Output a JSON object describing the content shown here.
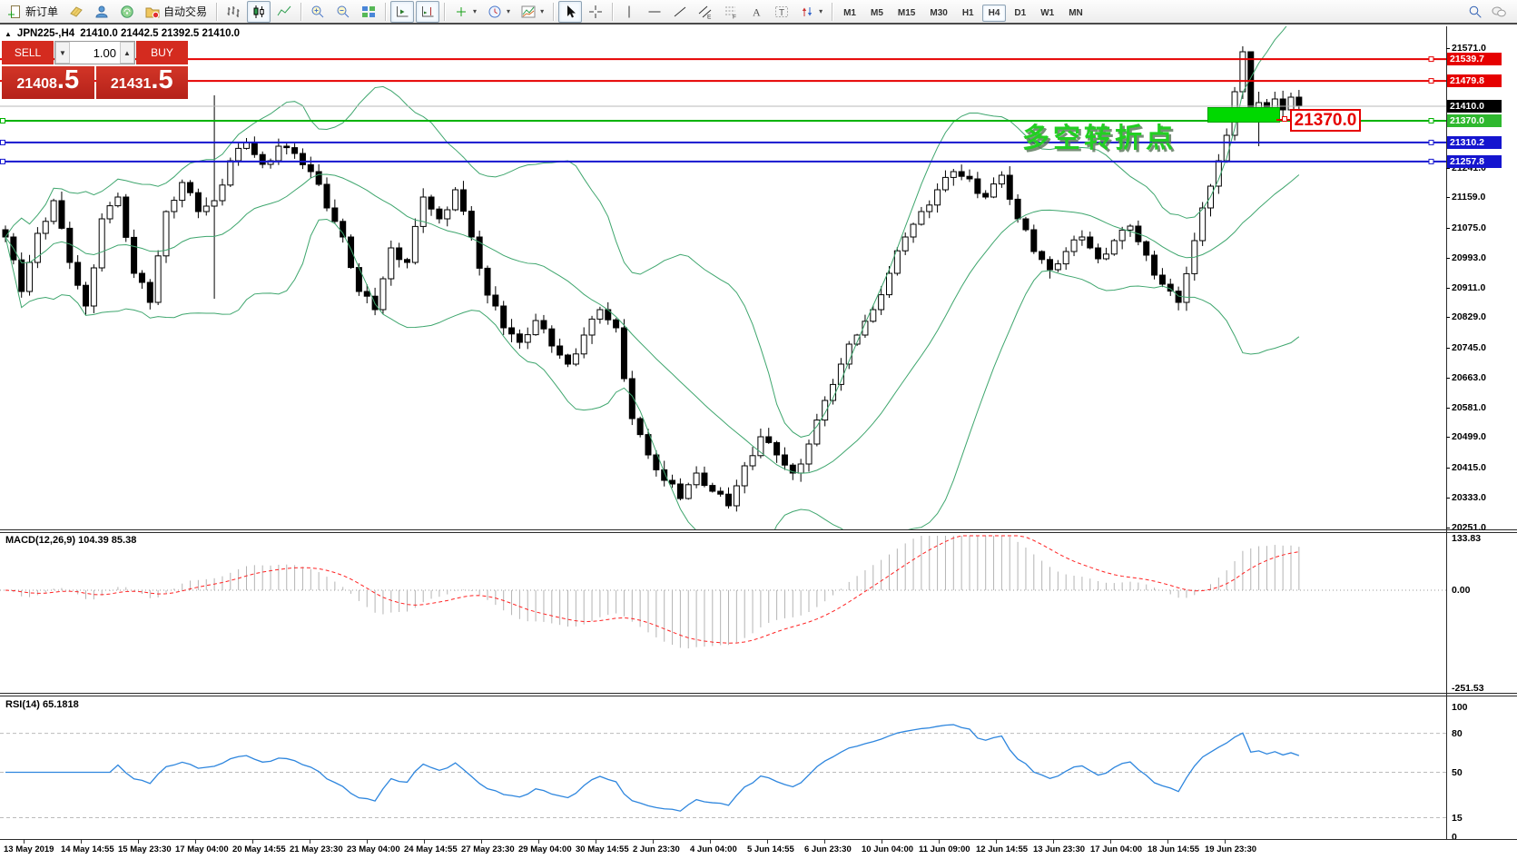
{
  "toolbar": {
    "new_order_label": "新订单",
    "auto_trading_label": "自动交易",
    "timeframes": [
      "M1",
      "M5",
      "M15",
      "M30",
      "H1",
      "H4",
      "D1",
      "W1",
      "MN"
    ],
    "active_timeframe": "H4"
  },
  "chart_header": {
    "title": "JPN225-,H4",
    "ohlc": "21410.0 21442.5 21392.5 21410.0"
  },
  "trade_panel": {
    "sell_label": "SELL",
    "buy_label": "BUY",
    "volume": "1.00",
    "sell_price_int": "21408",
    "sell_price_frac": ".5",
    "buy_price_int": "21431",
    "buy_price_frac": ".5"
  },
  "annotation": {
    "text": "多空转折点",
    "callout_price": "21370.0"
  },
  "price_axis": {
    "plain_ticks": [
      {
        "label": "21571.0",
        "price": 21571.0
      },
      {
        "label": "21241.0",
        "price": 21241.0
      },
      {
        "label": "21159.0",
        "price": 21159.0
      },
      {
        "label": "21075.0",
        "price": 21075.0
      },
      {
        "label": "20993.0",
        "price": 20993.0
      },
      {
        "label": "20911.0",
        "price": 20911.0
      },
      {
        "label": "20829.0",
        "price": 20829.0
      },
      {
        "label": "20745.0",
        "price": 20745.0
      },
      {
        "label": "20663.0",
        "price": 20663.0
      },
      {
        "label": "20581.0",
        "price": 20581.0
      },
      {
        "label": "20499.0",
        "price": 20499.0
      },
      {
        "label": "20415.0",
        "price": 20415.0
      },
      {
        "label": "20333.0",
        "price": 20333.0
      },
      {
        "label": "20251.0",
        "price": 20251.0
      }
    ],
    "badges": [
      {
        "label": "21539.7",
        "price": 21539.7,
        "bg": "#e60000",
        "fg": "#ffffff"
      },
      {
        "label": "21479.8",
        "price": 21479.8,
        "bg": "#e60000",
        "fg": "#ffffff"
      },
      {
        "label": "21410.0",
        "price": 21410.0,
        "bg": "#000000",
        "fg": "#ffffff"
      },
      {
        "label": "21370.0",
        "price": 21370.0,
        "bg": "#2eb82e",
        "fg": "#ffffff"
      },
      {
        "label": "21310.2",
        "price": 21310.2,
        "bg": "#1515cf",
        "fg": "#ffffff"
      },
      {
        "label": "21257.8",
        "price": 21257.8,
        "bg": "#1515cf",
        "fg": "#ffffff"
      }
    ]
  },
  "macd_panel": {
    "label": "MACD(12,26,9) 104.39 85.38",
    "axis_labels": [
      {
        "label": "133.83",
        "value": 133.83
      },
      {
        "label": "0.00",
        "value": 0
      },
      {
        "label": "-251.53",
        "value": -251.53
      }
    ]
  },
  "rsi_panel": {
    "label": "RSI(14) 65.1818",
    "axis_labels": [
      {
        "label": "100",
        "value": 100
      },
      {
        "label": "80",
        "value": 80
      },
      {
        "label": "50",
        "value": 50
      },
      {
        "label": "15",
        "value": 15
      },
      {
        "label": "0",
        "value": 0
      }
    ],
    "level_lines": [
      80,
      50,
      15
    ]
  },
  "date_axis": {
    "labels": [
      "13 May 2019",
      "14 May 14:55",
      "15 May 23:30",
      "17 May 04:00",
      "20 May 14:55",
      "21 May 23:30",
      "23 May 04:00",
      "24 May 14:55",
      "27 May 23:30",
      "29 May 04:00",
      "30 May 14:55",
      "2 Jun 23:30",
      "4 Jun 04:00",
      "5 Jun 14:55",
      "6 Jun 23:30",
      "10 Jun 04:00",
      "11 Jun 09:00",
      "12 Jun 14:55",
      "13 Jun 23:30",
      "17 Jun 04:00",
      "18 Jun 14:55",
      "19 Jun 23:30"
    ]
  },
  "chart_data": {
    "type": "candlestick",
    "symbol": "JPN225-",
    "timeframe": "H4",
    "bars": 162,
    "ohlc_current": {
      "open": 21410.0,
      "high": 21442.5,
      "low": 21392.5,
      "close": 21410.0
    },
    "bid": 21408.5,
    "ask": 21431.5,
    "ylim": [
      20220,
      21610
    ],
    "close_anchors": [
      [
        0,
        21050
      ],
      [
        2,
        20900
      ],
      [
        4,
        21060
      ],
      [
        6,
        21150
      ],
      [
        8,
        20980
      ],
      [
        10,
        20860
      ],
      [
        12,
        21100
      ],
      [
        14,
        21160
      ],
      [
        16,
        20950
      ],
      [
        18,
        20870
      ],
      [
        20,
        21120
      ],
      [
        22,
        21200
      ],
      [
        24,
        21120
      ],
      [
        26,
        21150
      ],
      [
        28,
        21260
      ],
      [
        30,
        21310
      ],
      [
        32,
        21250
      ],
      [
        34,
        21300
      ],
      [
        36,
        21280
      ],
      [
        38,
        21230
      ],
      [
        40,
        21130
      ],
      [
        42,
        21050
      ],
      [
        44,
        20900
      ],
      [
        46,
        20850
      ],
      [
        48,
        21020
      ],
      [
        50,
        20980
      ],
      [
        52,
        21160
      ],
      [
        54,
        21100
      ],
      [
        56,
        21180
      ],
      [
        58,
        21050
      ],
      [
        60,
        20890
      ],
      [
        62,
        20800
      ],
      [
        64,
        20760
      ],
      [
        66,
        20820
      ],
      [
        68,
        20750
      ],
      [
        70,
        20700
      ],
      [
        72,
        20780
      ],
      [
        74,
        20850
      ],
      [
        76,
        20800
      ],
      [
        78,
        20550
      ],
      [
        80,
        20450
      ],
      [
        82,
        20380
      ],
      [
        84,
        20330
      ],
      [
        86,
        20400
      ],
      [
        88,
        20350
      ],
      [
        90,
        20310
      ],
      [
        92,
        20420
      ],
      [
        94,
        20500
      ],
      [
        96,
        20450
      ],
      [
        98,
        20400
      ],
      [
        100,
        20480
      ],
      [
        102,
        20600
      ],
      [
        104,
        20700
      ],
      [
        106,
        20780
      ],
      [
        108,
        20850
      ],
      [
        110,
        20950
      ],
      [
        112,
        21050
      ],
      [
        114,
        21120
      ],
      [
        116,
        21180
      ],
      [
        118,
        21230
      ],
      [
        120,
        21210
      ],
      [
        122,
        21160
      ],
      [
        124,
        21220
      ],
      [
        126,
        21100
      ],
      [
        128,
        21010
      ],
      [
        130,
        20960
      ],
      [
        132,
        21010
      ],
      [
        134,
        21050
      ],
      [
        136,
        20990
      ],
      [
        138,
        21040
      ],
      [
        140,
        21080
      ],
      [
        142,
        21000
      ],
      [
        144,
        20920
      ],
      [
        146,
        20870
      ],
      [
        148,
        21040
      ],
      [
        150,
        21190
      ],
      [
        151,
        21260
      ],
      [
        152,
        21330
      ],
      [
        153,
        21450
      ],
      [
        154,
        21560
      ],
      [
        155,
        21395
      ],
      [
        156,
        21420
      ],
      [
        157,
        21390
      ],
      [
        158,
        21430
      ],
      [
        159,
        21400
      ],
      [
        160,
        21435
      ],
      [
        161,
        21410
      ]
    ],
    "wick_overrides": [
      [
        26,
        21440,
        20880
      ],
      [
        154,
        21575,
        21430
      ],
      [
        155,
        21560,
        21380
      ],
      [
        156,
        21450,
        21300
      ]
    ],
    "levels": [
      {
        "price": 21539.7,
        "color": "#e60000",
        "width": 2
      },
      {
        "price": 21479.8,
        "color": "#e60000",
        "width": 2
      },
      {
        "price": 21410.0,
        "color": "#b8b8b8",
        "width": 1
      },
      {
        "price": 21370.0,
        "color": "#00b300",
        "width": 2
      },
      {
        "price": 21310.2,
        "color": "#1515cf",
        "width": 2
      },
      {
        "price": 21257.8,
        "color": "#1515cf",
        "width": 2
      }
    ],
    "bollinger": {
      "period": 20,
      "deviation": 2,
      "color": "#3fa66e"
    },
    "macd": {
      "fast": 12,
      "slow": 26,
      "signal": 9,
      "current_main": 104.39,
      "current_signal": 85.38,
      "axis_min": -251.53,
      "axis_max": 133.83,
      "hist_color": "#b4b4b4",
      "signal_color": "#ff2222"
    },
    "rsi": {
      "period": 14,
      "current": 65.1818,
      "color": "#2e86de",
      "levels": [
        80,
        50,
        15
      ]
    },
    "highlight_rect": {
      "price_top": 21408,
      "price_bottom": 21366
    },
    "bull_color": "#ffffff",
    "bear_color": "#000000",
    "outline_color": "#000000"
  }
}
